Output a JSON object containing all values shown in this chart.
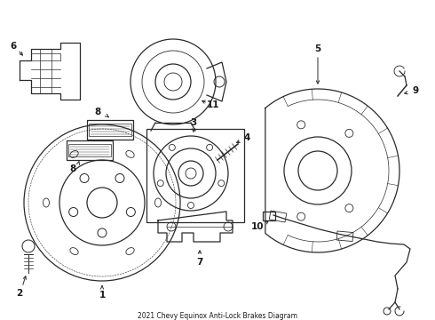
{
  "title": "2021 Chevy Equinox Anti-Lock Brakes Diagram",
  "bg_color": "#ffffff",
  "line_color": "#2a2a2a",
  "fig_width": 4.9,
  "fig_height": 3.6,
  "dpi": 100
}
